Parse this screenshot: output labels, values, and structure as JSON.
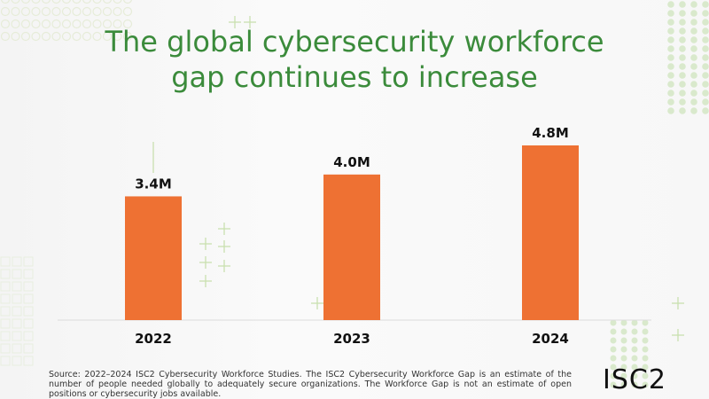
{
  "title_lines": [
    "The global cybersecurity workforce",
    "gap continues to increase"
  ],
  "chart_data": {
    "type": "bar",
    "title": "The global cybersecurity workforce gap continues to increase",
    "categories": [
      "2022",
      "2023",
      "2024"
    ],
    "values": [
      3.4,
      4.0,
      4.8
    ],
    "data_labels": [
      "3.4M",
      "4.0M",
      "4.8M"
    ],
    "unit": "millions",
    "xlabel": "",
    "ylabel": "",
    "ylim": [
      0,
      5.4
    ],
    "grid": false,
    "legend": "none",
    "bar_color": "#ee7133"
  },
  "source": "Source: 2022–2024 ISC2 Cybersecurity Workforce Studies. The ISC2 Cybersecurity Workforce Gap is an estimate of the number of people needed globally to adequately secure organizations. The Workforce Gap is not an estimate of open positions or cybersecurity jobs available.",
  "logo": {
    "text": "ISC2"
  },
  "colors": {
    "title": "#3b8b3b",
    "bar": "#ee7133",
    "deco": "#cfe3b8"
  }
}
